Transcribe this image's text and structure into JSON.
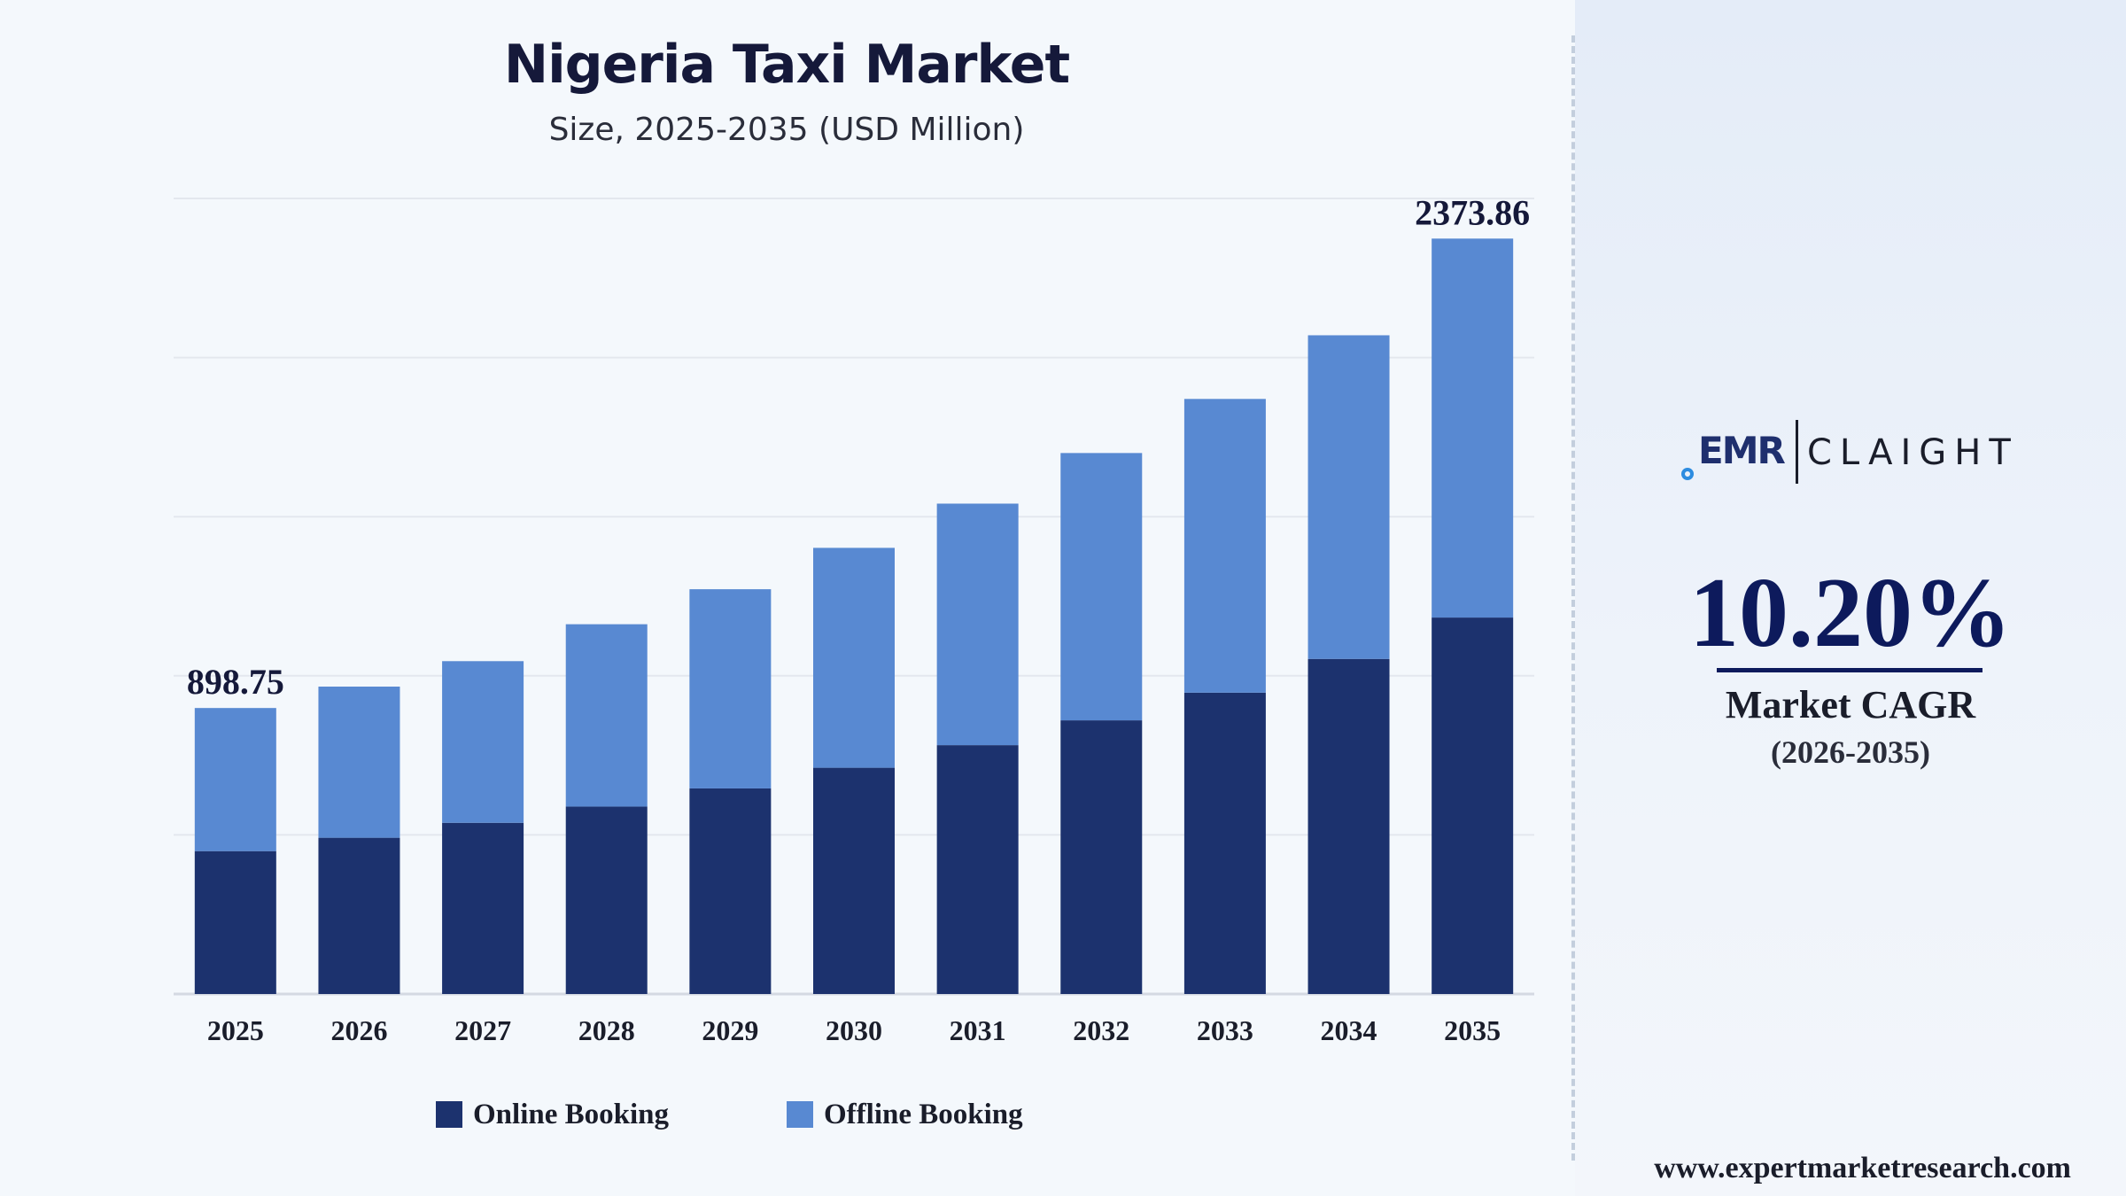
{
  "chart_data": {
    "type": "bar",
    "stacked": true,
    "title": "Nigeria Taxi Market",
    "subtitle": "Size, 2025-2035 (USD Million)",
    "categories": [
      "2025",
      "2026",
      "2027",
      "2028",
      "2029",
      "2030",
      "2031",
      "2032",
      "2033",
      "2034",
      "2035"
    ],
    "series": [
      {
        "name": "Online Booking",
        "color": "#1c326e",
        "values": [
          449,
          491,
          538,
          589,
          646,
          711,
          782,
          860,
          947,
          1053,
          1183
        ]
      },
      {
        "name": "Offline Booking",
        "color": "#5889d2",
        "values": [
          449.75,
          475,
          508,
          573,
          626,
          691,
          759,
          840,
          923,
          1017,
          1190.86
        ]
      }
    ],
    "data_labels": [
      {
        "category": "2025",
        "text": "898.75"
      },
      {
        "category": "2035",
        "text": "2373.86"
      }
    ],
    "ylim": [
      0,
      2500
    ],
    "grid": true,
    "legend_position": "bottom"
  },
  "brand": {
    "logo_left": "EMR",
    "logo_right": "CLAIGHT",
    "website": "www.expertmarketresearch.com"
  },
  "cagr": {
    "value": "10.20%",
    "label": "Market CAGR",
    "period": "(2026-2035)"
  }
}
